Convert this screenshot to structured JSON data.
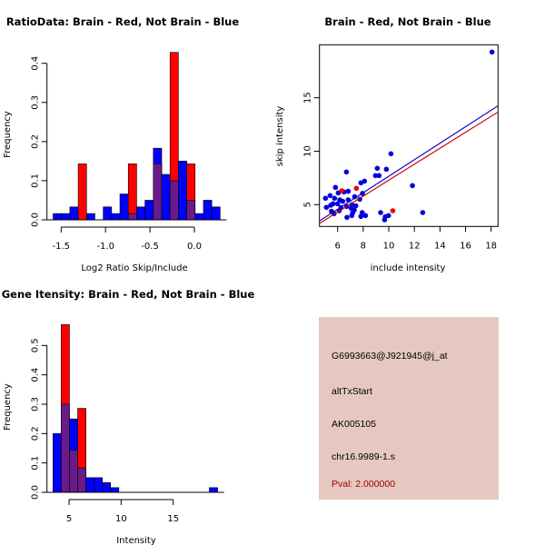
{
  "chart_data": [
    {
      "type": "bar",
      "subtype": "overlaid-histogram",
      "title": "RatioData: Brain - Red, Not Brain - Blue",
      "xlabel": "Log2 Ratio Skip/Include",
      "ylabel": "Frequency",
      "xticks": [
        "-1.5",
        "-1.0",
        "-0.5",
        "0.0"
      ],
      "xtick_values": [
        -1.5,
        -1.0,
        -0.5,
        0.0
      ],
      "yticks": [
        "0.0",
        "0.1",
        "0.2",
        "0.3",
        "0.4"
      ],
      "ytick_values": [
        0,
        0.1,
        0.2,
        0.3,
        0.4
      ],
      "bin_start": -1.59,
      "bin_width": 0.094,
      "series": [
        {
          "name": "Not Brain",
          "color": "#0000ff",
          "values": [
            0.016,
            0.016,
            0.033,
            0,
            0.016,
            0,
            0.033,
            0.016,
            0.066,
            0.016,
            0.033,
            0.05,
            0.183,
            0.116,
            0.1,
            0.15,
            0.05,
            0.016,
            0.05,
            0.033
          ]
        },
        {
          "name": "Brain",
          "color": "#ff0000",
          "values": [
            0,
            0,
            0,
            0.143,
            0,
            0,
            0,
            0,
            0,
            0.143,
            0,
            0,
            0.143,
            0,
            0.428,
            0,
            0.143,
            0,
            0,
            0
          ]
        }
      ],
      "overlap_color": "#6a1a8a",
      "grid": false
    },
    {
      "type": "scatter",
      "title": "Brain - Red, Not Brain - Blue",
      "xlabel": "include intensity",
      "ylabel": "skip intensity",
      "xlim": [
        4.58,
        18.54
      ],
      "ylim": [
        2.96,
        19.96
      ],
      "xticks": [
        "6",
        "8",
        "10",
        "12",
        "14",
        "16",
        "18"
      ],
      "xtick_values": [
        6,
        8,
        10,
        12,
        14,
        16,
        18
      ],
      "yticks": [
        "5",
        "10",
        "15"
      ],
      "ytick_values": [
        5,
        10,
        15
      ],
      "series": [
        {
          "name": "Not Brain",
          "color": "#0000dd",
          "points": [
            [
              18.07,
              19.28
            ],
            [
              10.17,
              9.76
            ],
            [
              6.69,
              8.06
            ],
            [
              9.1,
              8.4
            ],
            [
              9.81,
              8.31
            ],
            [
              8.96,
              7.72
            ],
            [
              9.24,
              7.72
            ],
            [
              8.1,
              7.2
            ],
            [
              7.82,
              7.04
            ],
            [
              11.85,
              6.78
            ],
            [
              5.83,
              6.61
            ],
            [
              7.94,
              6.05
            ],
            [
              6.83,
              6.25
            ],
            [
              6.5,
              6.19
            ],
            [
              6.05,
              6.1
            ],
            [
              5.41,
              5.85
            ],
            [
              5.05,
              5.6
            ],
            [
              5.76,
              5.6
            ],
            [
              6.17,
              5.45
            ],
            [
              7.33,
              5.74
            ],
            [
              7.73,
              5.51
            ],
            [
              6.83,
              5.45
            ],
            [
              6.4,
              5.31
            ],
            [
              5.64,
              5.08
            ],
            [
              5.46,
              4.94
            ],
            [
              6.0,
              5.08
            ],
            [
              7.11,
              5.0
            ],
            [
              7.42,
              4.89
            ],
            [
              5.12,
              4.75
            ],
            [
              6.26,
              4.72
            ],
            [
              6.71,
              4.83
            ],
            [
              7.06,
              4.66
            ],
            [
              5.52,
              4.38
            ],
            [
              7.3,
              4.49
            ],
            [
              6.12,
              4.43
            ],
            [
              5.72,
              4.15
            ],
            [
              7.18,
              4.24
            ],
            [
              7.92,
              4.26
            ],
            [
              9.36,
              4.26
            ],
            [
              12.65,
              4.26
            ],
            [
              6.73,
              3.81
            ],
            [
              7.11,
              3.98
            ],
            [
              7.82,
              3.9
            ],
            [
              8.18,
              3.98
            ],
            [
              9.72,
              3.87
            ],
            [
              9.98,
              3.98
            ],
            [
              9.67,
              3.58
            ]
          ]
        },
        {
          "name": "Brain",
          "color": "#ee0000",
          "points": [
            [
              7.47,
              6.53
            ],
            [
              10.31,
              4.43
            ],
            [
              6.33,
              6.3
            ]
          ]
        }
      ],
      "fit_lines": [
        {
          "name": "Not Brain fit",
          "color": "#0000cc",
          "slope": 0.772,
          "intercept": -0.06
        },
        {
          "name": "Brain fit",
          "color": "#cc0000",
          "slope": 0.747,
          "intercept": -0.18
        }
      ],
      "grid": false
    },
    {
      "type": "bar",
      "subtype": "overlaid-histogram",
      "title": "Gene Itensity: Brain - Red, Not Brain - Blue",
      "xlabel": "Intensity",
      "ylabel": "Frequency",
      "xticks": [
        "5",
        "10",
        "15"
      ],
      "xtick_values": [
        5,
        10,
        15
      ],
      "yticks": [
        "0.0",
        "0.1",
        "0.2",
        "0.3",
        "0.4",
        "0.5"
      ],
      "ytick_values": [
        0,
        0.1,
        0.2,
        0.3,
        0.4,
        0.5
      ],
      "bin_start": 3.46,
      "bin_width": 0.79,
      "series": [
        {
          "name": "Not Brain",
          "color": "#0000ff",
          "values": [
            0.2,
            0.3,
            0.25,
            0.083,
            0.05,
            0.05,
            0.033,
            0.016,
            0,
            0,
            0,
            0,
            0,
            0,
            0,
            0,
            0,
            0,
            0,
            0.016
          ]
        },
        {
          "name": "Brain",
          "color": "#ff0000",
          "values": [
            0,
            0.571,
            0.143,
            0.286,
            0,
            0,
            0,
            0,
            0,
            0,
            0,
            0,
            0,
            0,
            0,
            0,
            0,
            0,
            0,
            0
          ]
        }
      ],
      "overlap_color": "#6a1a8a",
      "grid": false
    }
  ],
  "info_panel": {
    "probe": "G6993663@J921945@j_at",
    "event_type": "altTxStart",
    "accession": "AK005105",
    "location": "chr16.9989-1.s",
    "pval": "Pval: 2.000000",
    "background": "#e6c8c0",
    "pval_color": "#a00000"
  }
}
